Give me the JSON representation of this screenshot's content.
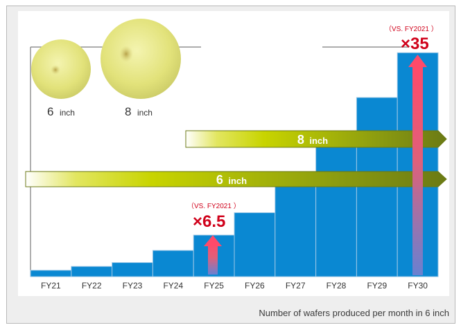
{
  "chart_data": {
    "type": "bar",
    "categories": [
      "FY21",
      "FY22",
      "FY23",
      "FY24",
      "FY25",
      "FY26",
      "FY27",
      "FY28",
      "FY29",
      "FY30"
    ],
    "values": [
      1,
      1.6,
      2.2,
      4.1,
      6.5,
      10,
      15,
      21,
      28,
      35
    ],
    "ylim": [
      0,
      36
    ],
    "grid": false,
    "caption": "Number of wafers produced per month in 6 inch",
    "wafers": [
      {
        "size": "6",
        "unit": "inch"
      },
      {
        "size": "8",
        "unit": "inch"
      }
    ],
    "arrows": [
      {
        "size": "8",
        "unit": "inch",
        "from": "FY25",
        "to": "FY30"
      },
      {
        "size": "6",
        "unit": "inch",
        "from": "FY21",
        "to": "FY30"
      }
    ],
    "annotations": [
      {
        "category": "FY25",
        "note": "（VS. FY2021 ）",
        "value": "×6.5"
      },
      {
        "category": "FY30",
        "note": "（VS. FY2021 ）",
        "value": "×35"
      }
    ],
    "colors": {
      "bar": "#0a88d2",
      "bar_edge": "#9ec8e6",
      "frame": "#c9c9c9",
      "annotation": "#d0021b",
      "arrow_start": "#ffffff",
      "arrow_mid": "#c8d400",
      "arrow_end": "#6b7a14",
      "wafer": "#e6e680"
    }
  }
}
